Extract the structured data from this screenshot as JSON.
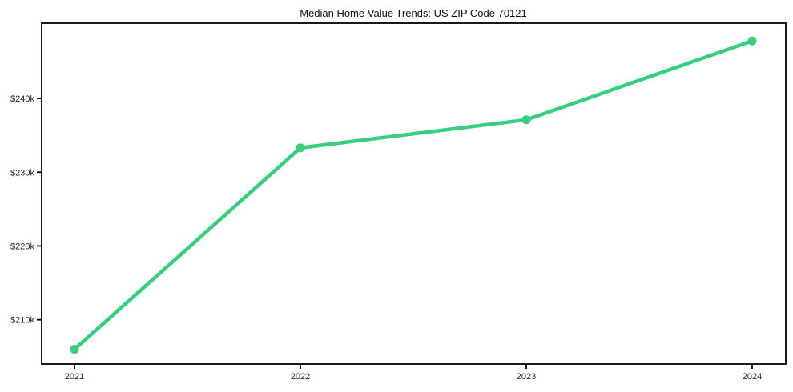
{
  "chart_data": {
    "type": "line",
    "title": "Median Home Value Trends: US ZIP Code 70121",
    "x": [
      "2021",
      "2022",
      "2023",
      "2024"
    ],
    "series": [
      {
        "values": [
          206000,
          233300,
          237100,
          247800
        ]
      }
    ],
    "xlabel": "",
    "ylabel": "",
    "ytick_values": [
      210000,
      220000,
      230000,
      240000
    ],
    "ytick_labels": [
      "$210k",
      "$220k",
      "$230k",
      "$240k"
    ],
    "ylim": [
      204000,
      250200
    ],
    "grid": false,
    "legend": "none",
    "colors": {
      "line": "#35d07e",
      "marker": "#35d07e",
      "frame": "#000000",
      "text": "#262626",
      "background": "#ffffff"
    }
  }
}
